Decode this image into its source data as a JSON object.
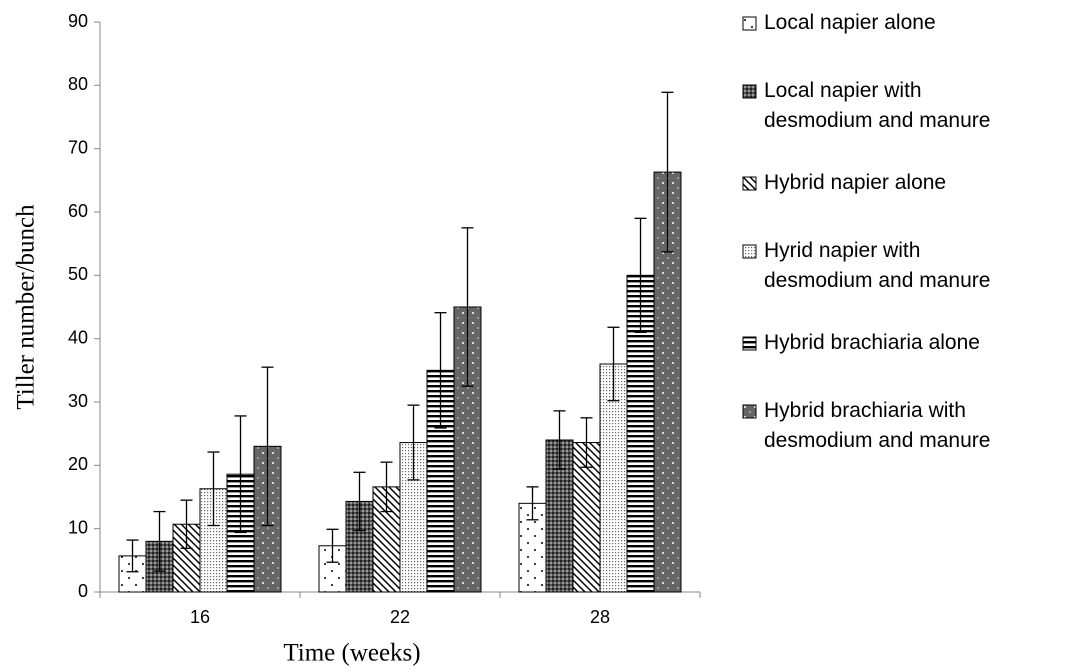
{
  "chart_data": {
    "type": "bar",
    "x_label": "Time (weeks)",
    "y_label": "Tiller number/bunch",
    "categories": [
      "16",
      "22",
      "28"
    ],
    "series": [
      {
        "name": "Local napier alone",
        "values": [
          5.7,
          7.3,
          14.0
        ],
        "errors": [
          2.5,
          2.6,
          2.6
        ]
      },
      {
        "name": "Local napier with desmodium and manure",
        "values": [
          8.0,
          14.3,
          24.0
        ],
        "errors": [
          4.7,
          4.6,
          4.6
        ]
      },
      {
        "name": "Hybrid napier alone",
        "values": [
          10.7,
          16.6,
          23.6
        ],
        "errors": [
          3.8,
          3.9,
          3.9
        ]
      },
      {
        "name": "Hyrid napier with desmodium and manure",
        "values": [
          16.3,
          23.6,
          36.0
        ],
        "errors": [
          5.8,
          5.9,
          5.8
        ]
      },
      {
        "name": "Hybrid brachiaria alone",
        "values": [
          18.6,
          35.0,
          50.0
        ],
        "errors": [
          9.2,
          9.1,
          9.0
        ]
      },
      {
        "name": "Hybrid brachiaria with desmodium and manure",
        "values": [
          23.0,
          45.0,
          66.3
        ],
        "errors": [
          12.5,
          12.5,
          12.6
        ]
      }
    ],
    "ylim": [
      0,
      90
    ],
    "yticks": [
      0,
      10,
      20,
      30,
      40,
      50,
      60,
      70,
      80,
      90
    ],
    "grid": false,
    "legend": "right"
  }
}
